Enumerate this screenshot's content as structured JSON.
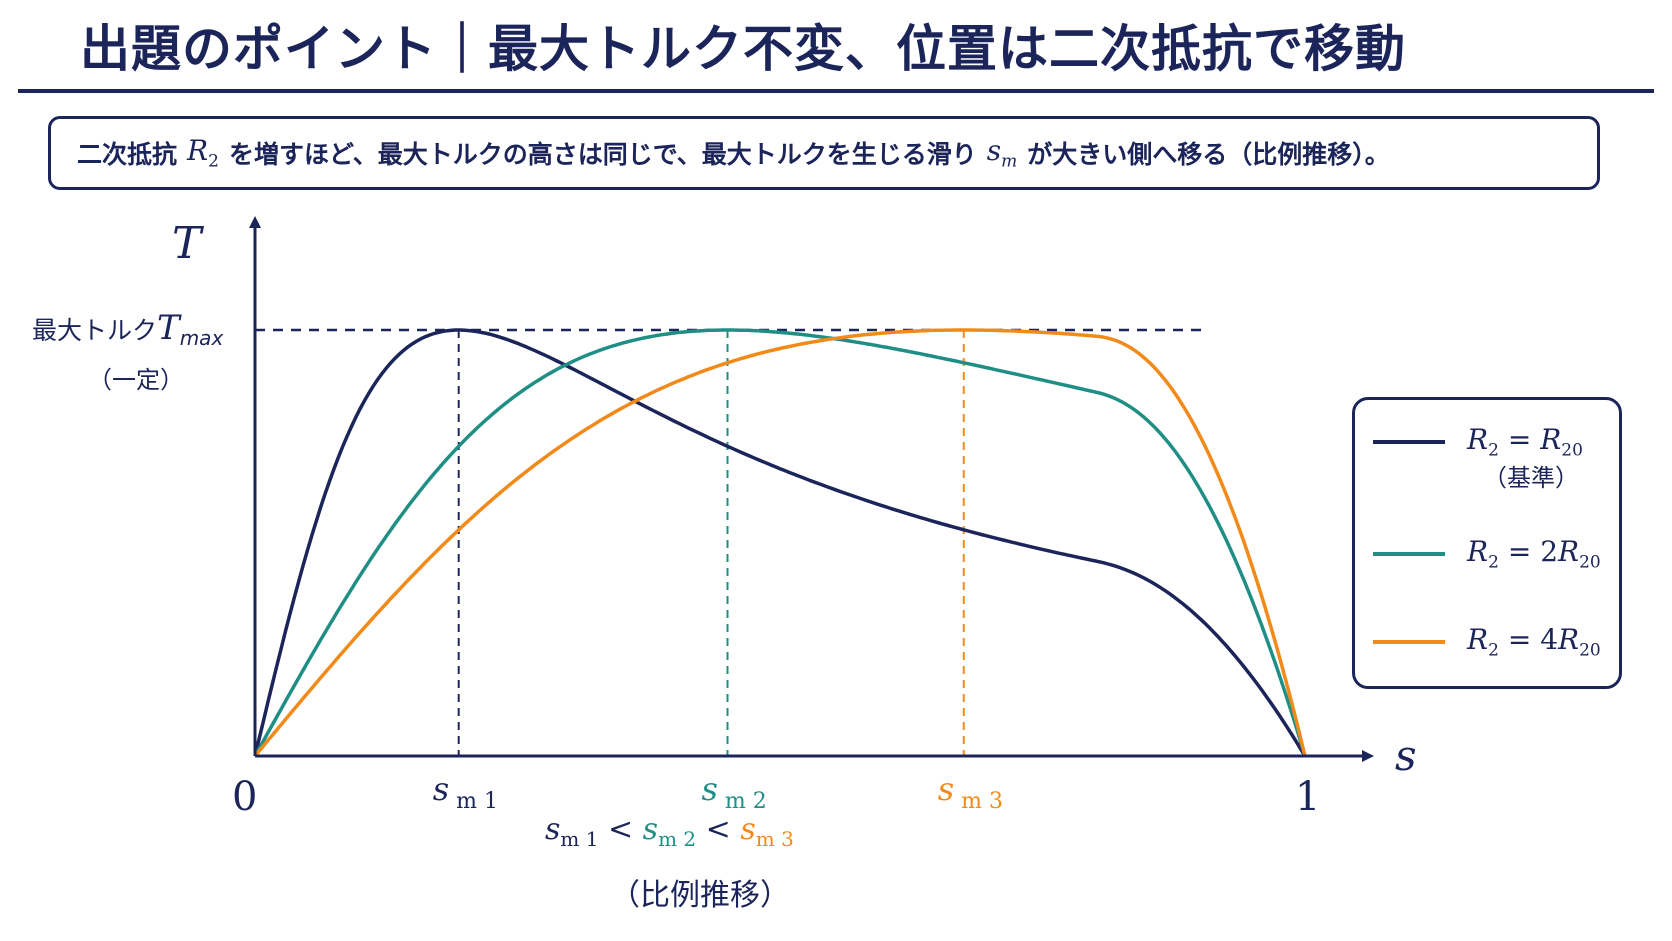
{
  "title": "出題のポイント｜最大トルク不変、位置は二次抵抗で移動",
  "summary": {
    "part1": "二次抵抗",
    "r_var": "R",
    "r_sub": "2",
    "part2": "を増すほど、最大トルクの高さは同じで、最大トルクを生じる滑り",
    "s_var": "s",
    "s_sub": "m",
    "part3": "が大きい側へ移る（比例推移）。"
  },
  "colors": {
    "navy": "#1c2559",
    "teal": "#1f8f86",
    "orange": "#f28a1a"
  },
  "chart_data": {
    "type": "line",
    "ylabel": "T",
    "xlabel": "s",
    "xlim": [
      0,
      1
    ],
    "x_ticks": [
      "0",
      "1"
    ],
    "tmax_label": "最大トルク",
    "tmax_symbol": "T",
    "tmax_sub": "max",
    "tmax_note": "（一定）",
    "sm_labels": [
      {
        "var": "s",
        "sub": "m 1",
        "x": 0.194,
        "color": "#1c2559"
      },
      {
        "var": "s",
        "sub": "m 2",
        "x": 0.45,
        "color": "#1f8f86"
      },
      {
        "var": "s",
        "sub": "m 3",
        "x": 0.675,
        "color": "#f28a1a"
      }
    ],
    "series": [
      {
        "legend": "R₂ = R₂₀",
        "color": "#1c2559",
        "sm": 0.194,
        "endpoint_torque": 0.0
      },
      {
        "legend": "R₂ = 2R₂₀",
        "color": "#1f8f86",
        "sm": 0.45,
        "endpoint_torque": 0.0
      },
      {
        "legend": "R₂ = 4R₂₀",
        "color": "#f28a1a",
        "sm": 0.675,
        "endpoint_torque": 0.0
      }
    ]
  },
  "legend": {
    "items": [
      {
        "lhs": "R",
        "lhs_sub": "2",
        "eq": " = ",
        "coef": "",
        "rhs": "R",
        "rhs_sub": "20",
        "note": "（基準）"
      },
      {
        "lhs": "R",
        "lhs_sub": "2",
        "eq": " = ",
        "coef": "2",
        "rhs": "R",
        "rhs_sub": "20"
      },
      {
        "lhs": "R",
        "lhs_sub": "2",
        "eq": " = ",
        "coef": "4",
        "rhs": "R",
        "rhs_sub": "20"
      }
    ]
  },
  "inequality": {
    "s1": "s",
    "s1_sub": "m 1",
    "lt": " < ",
    "s2": "s",
    "s2_sub": "m 2",
    "s3": "s",
    "s3_sub": "m 3",
    "note": "（比例推移）"
  }
}
